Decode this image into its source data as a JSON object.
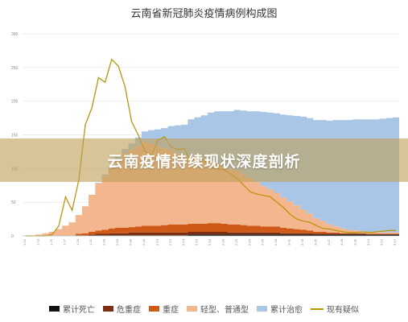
{
  "chart_data": {
    "type": "area",
    "title": "云南省新冠肺炎疫情病例构成图",
    "yticks": [
      0,
      50,
      100,
      150,
      200,
      250,
      300
    ],
    "ylim": [
      0,
      300
    ],
    "grid": true,
    "legend_position": "bottom",
    "x": [
      "1月21日",
      "1月22日",
      "1月23日",
      "1月24日",
      "1月25日",
      "1月26日",
      "1月27日",
      "1月28日",
      "1月29日",
      "1月30日",
      "1月31日",
      "2月1日",
      "2月2日",
      "2月3日",
      "2月4日",
      "2月5日",
      "2月6日",
      "2月7日",
      "2月8日",
      "2月9日",
      "2月10日",
      "2月11日",
      "2月12日",
      "2月13日",
      "2月14日",
      "2月15日",
      "2月16日",
      "2月17日",
      "2月18日",
      "2月19日",
      "2月20日",
      "2月21日",
      "2月22日",
      "2月23日",
      "2月24日",
      "2月25日",
      "2月26日",
      "2月27日",
      "2月28日",
      "2月29日",
      "3月1日",
      "3月2日",
      "3月3日",
      "3月4日",
      "3月5日",
      "3月6日",
      "3月7日",
      "3月8日",
      "3月9日",
      "3月10日",
      "3月11日",
      "3月12日",
      "3月13日",
      "3月14日",
      "3月15日",
      "3月16日",
      "3月17日"
    ],
    "x_tick_labels": [
      "1-21",
      "1-23",
      "1-25",
      "1-27",
      "1-29",
      "1-31",
      "2-02",
      "2-04",
      "2-06",
      "2-08",
      "2-10",
      "2-12",
      "2-14",
      "2-16",
      "2-18",
      "2-20",
      "2-22",
      "2-24",
      "2-26",
      "2-28",
      "3-01",
      "3-03",
      "3-05",
      "3-07",
      "3-09",
      "3-11",
      "3-13",
      "3-15",
      "3-17"
    ],
    "series": [
      {
        "name": "累计死亡",
        "kind": "stacked-area",
        "color": "#111111",
        "values": [
          0,
          0,
          0,
          0,
          0,
          0,
          0,
          0,
          0,
          0,
          0,
          1,
          1,
          1,
          1,
          1,
          1,
          1,
          1,
          1,
          1,
          1,
          1,
          1,
          1,
          2,
          2,
          2,
          2,
          2,
          2,
          2,
          2,
          2,
          2,
          2,
          2,
          2,
          2,
          2,
          2,
          2,
          2,
          2,
          2,
          2,
          2,
          2,
          2,
          2,
          2,
          2,
          2,
          2,
          2,
          2,
          2
        ]
      },
      {
        "name": "危重症",
        "kind": "stacked-area",
        "color": "#7a3010",
        "values": [
          0,
          0,
          0,
          0,
          0,
          0,
          0,
          0,
          1,
          1,
          2,
          2,
          2,
          3,
          3,
          3,
          4,
          4,
          4,
          4,
          4,
          4,
          4,
          4,
          4,
          4,
          4,
          4,
          4,
          4,
          4,
          3,
          3,
          3,
          3,
          3,
          3,
          3,
          3,
          2,
          2,
          2,
          2,
          2,
          1,
          1,
          1,
          1,
          1,
          1,
          1,
          1,
          0,
          0,
          0,
          0,
          0
        ]
      },
      {
        "name": "重症",
        "kind": "stacked-area",
        "color": "#cf5a18",
        "values": [
          0,
          0,
          0,
          0,
          0,
          0,
          0,
          0,
          2,
          3,
          4,
          5,
          6,
          7,
          8,
          8,
          8,
          9,
          10,
          10,
          10,
          11,
          12,
          12,
          12,
          12,
          12,
          12,
          13,
          13,
          12,
          12,
          12,
          11,
          10,
          10,
          9,
          9,
          9,
          8,
          7,
          6,
          5,
          4,
          3,
          3,
          2,
          2,
          1,
          1,
          1,
          1,
          1,
          1,
          1,
          1,
          1
        ]
      },
      {
        "name": "轻型、普通型",
        "kind": "stacked-area",
        "color": "#f4b68f",
        "values": [
          0,
          0,
          2,
          4,
          6,
          10,
          15,
          20,
          28,
          40,
          55,
          70,
          80,
          90,
          100,
          110,
          115,
          120,
          125,
          122,
          118,
          114,
          110,
          105,
          100,
          100,
          98,
          95,
          92,
          88,
          85,
          82,
          80,
          75,
          70,
          65,
          60,
          55,
          50,
          45,
          40,
          35,
          30,
          25,
          20,
          16,
          12,
          9,
          7,
          5,
          4,
          3,
          3,
          2,
          2,
          2,
          2
        ]
      },
      {
        "name": "累计治愈",
        "kind": "stacked-area",
        "color": "#a9c6e6",
        "values": [
          0,
          0,
          0,
          0,
          0,
          0,
          0,
          0,
          0,
          0,
          0,
          1,
          2,
          3,
          5,
          7,
          9,
          12,
          15,
          20,
          25,
          30,
          36,
          42,
          48,
          55,
          60,
          66,
          72,
          78,
          82,
          86,
          90,
          95,
          100,
          105,
          110,
          114,
          118,
          123,
          128,
          133,
          138,
          142,
          146,
          150,
          154,
          158,
          161,
          163,
          165,
          166,
          167,
          168,
          169,
          170,
          171
        ]
      },
      {
        "name": "现有疑似",
        "kind": "line",
        "color": "#b8960c",
        "values": [
          0,
          0,
          0,
          0,
          2,
          15,
          58,
          38,
          82,
          165,
          190,
          235,
          228,
          262,
          252,
          222,
          170,
          150,
          126,
          120,
          142,
          147,
          132,
          128,
          130,
          108,
          122,
          112,
          102,
          100,
          98,
          92,
          85,
          75,
          65,
          62,
          60,
          58,
          50,
          42,
          32,
          25,
          22,
          20,
          15,
          11,
          10,
          8,
          6,
          5,
          5,
          6,
          5,
          6,
          7,
          8,
          8
        ]
      }
    ]
  },
  "banner": {
    "text": "云南疫情持续现状深度剖析"
  },
  "legend": [
    {
      "label": "累计死亡",
      "color": "#111111",
      "kind": "box"
    },
    {
      "label": "危重症",
      "color": "#7a3010",
      "kind": "box"
    },
    {
      "label": "重症",
      "color": "#cf5a18",
      "kind": "box"
    },
    {
      "label": "轻型、普通型",
      "color": "#f4b68f",
      "kind": "box"
    },
    {
      "label": "累计治愈",
      "color": "#a9c6e6",
      "kind": "box"
    },
    {
      "label": "现有疑似",
      "color": "#b8960c",
      "kind": "line"
    }
  ]
}
